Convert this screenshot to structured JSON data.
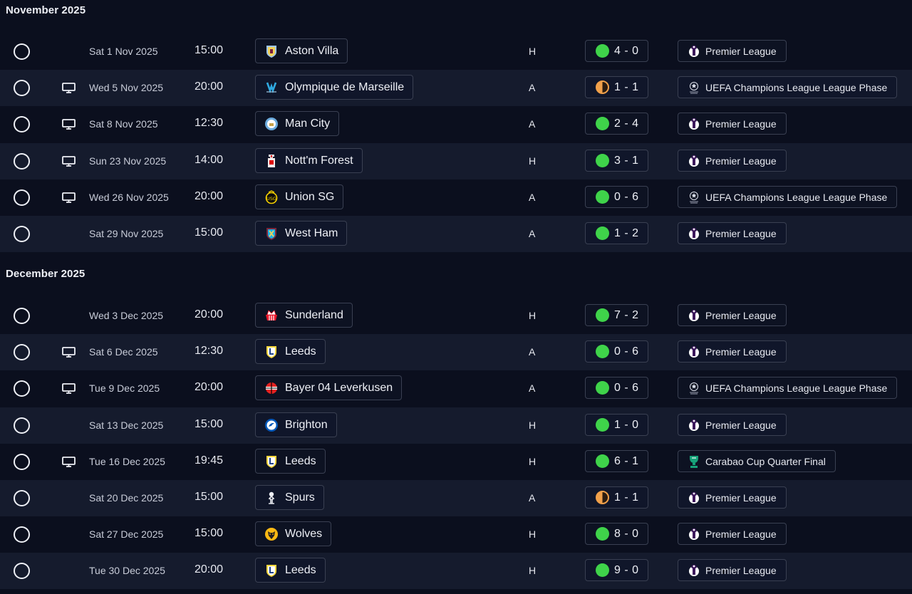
{
  "sections": [
    {
      "title": "November 2025",
      "fixtures": [
        {
          "tv": false,
          "date": "Sat 1 Nov 2025",
          "time": "15:00",
          "opponent": "Aston Villa",
          "crest": "aston-villa-crest",
          "venue": "H",
          "outcome": "win",
          "score": "4 - 0",
          "competition": "Premier League",
          "comp_icon": "premier-league-icon"
        },
        {
          "tv": true,
          "date": "Wed 5 Nov 2025",
          "time": "20:00",
          "opponent": "Olympique de Marseille",
          "crest": "marseille-crest",
          "venue": "A",
          "outcome": "draw",
          "score": "1 - 1",
          "competition": "UEFA Champions League League Phase",
          "comp_icon": "champions-league-icon"
        },
        {
          "tv": true,
          "date": "Sat 8 Nov 2025",
          "time": "12:30",
          "opponent": "Man City",
          "crest": "man-city-crest",
          "venue": "A",
          "outcome": "win",
          "score": "2 - 4",
          "competition": "Premier League",
          "comp_icon": "premier-league-icon"
        },
        {
          "tv": true,
          "date": "Sun 23 Nov 2025",
          "time": "14:00",
          "opponent": "Nott'm Forest",
          "crest": "nottm-forest-crest",
          "venue": "H",
          "outcome": "win",
          "score": "3 - 1",
          "competition": "Premier League",
          "comp_icon": "premier-league-icon"
        },
        {
          "tv": true,
          "date": "Wed 26 Nov 2025",
          "time": "20:00",
          "opponent": "Union SG",
          "crest": "union-sg-crest",
          "venue": "A",
          "outcome": "win",
          "score": "0 - 6",
          "competition": "UEFA Champions League League Phase",
          "comp_icon": "champions-league-icon"
        },
        {
          "tv": false,
          "date": "Sat 29 Nov 2025",
          "time": "15:00",
          "opponent": "West Ham",
          "crest": "west-ham-crest",
          "venue": "A",
          "outcome": "win",
          "score": "1 - 2",
          "competition": "Premier League",
          "comp_icon": "premier-league-icon"
        }
      ]
    },
    {
      "title": "December 2025",
      "fixtures": [
        {
          "tv": false,
          "date": "Wed 3 Dec 2025",
          "time": "20:00",
          "opponent": "Sunderland",
          "crest": "sunderland-crest",
          "venue": "H",
          "outcome": "win",
          "score": "7 - 2",
          "competition": "Premier League",
          "comp_icon": "premier-league-icon"
        },
        {
          "tv": true,
          "date": "Sat 6 Dec 2025",
          "time": "12:30",
          "opponent": "Leeds",
          "crest": "leeds-crest",
          "venue": "A",
          "outcome": "win",
          "score": "0 - 6",
          "competition": "Premier League",
          "comp_icon": "premier-league-icon"
        },
        {
          "tv": true,
          "date": "Tue 9 Dec 2025",
          "time": "20:00",
          "opponent": "Bayer 04 Leverkusen",
          "crest": "leverkusen-crest",
          "venue": "A",
          "outcome": "win",
          "score": "0 - 6",
          "competition": "UEFA Champions League League Phase",
          "comp_icon": "champions-league-icon"
        },
        {
          "tv": false,
          "date": "Sat 13 Dec 2025",
          "time": "15:00",
          "opponent": "Brighton",
          "crest": "brighton-crest",
          "venue": "H",
          "outcome": "win",
          "score": "1 - 0",
          "competition": "Premier League",
          "comp_icon": "premier-league-icon"
        },
        {
          "tv": true,
          "date": "Tue 16 Dec 2025",
          "time": "19:45",
          "opponent": "Leeds",
          "crest": "leeds-crest",
          "venue": "H",
          "outcome": "win",
          "score": "6 - 1",
          "competition": "Carabao Cup Quarter Final",
          "comp_icon": "carabao-cup-icon"
        },
        {
          "tv": false,
          "date": "Sat 20 Dec 2025",
          "time": "15:00",
          "opponent": "Spurs",
          "crest": "spurs-crest",
          "venue": "A",
          "outcome": "draw",
          "score": "1 - 1",
          "competition": "Premier League",
          "comp_icon": "premier-league-icon"
        },
        {
          "tv": false,
          "date": "Sat 27 Dec 2025",
          "time": "15:00",
          "opponent": "Wolves",
          "crest": "wolves-crest",
          "venue": "H",
          "outcome": "win",
          "score": "8 - 0",
          "competition": "Premier League",
          "comp_icon": "premier-league-icon"
        },
        {
          "tv": false,
          "date": "Tue 30 Dec 2025",
          "time": "20:00",
          "opponent": "Leeds",
          "crest": "leeds-crest",
          "venue": "H",
          "outcome": "win",
          "score": "9 - 0",
          "competition": "Premier League",
          "comp_icon": "premier-league-icon"
        }
      ]
    }
  ],
  "colors": {
    "background": "#0b0f1e",
    "row_shaded": "#151b2d",
    "win": "#3fd34a",
    "draw": "#f0a04a",
    "border": "#3a4052"
  }
}
